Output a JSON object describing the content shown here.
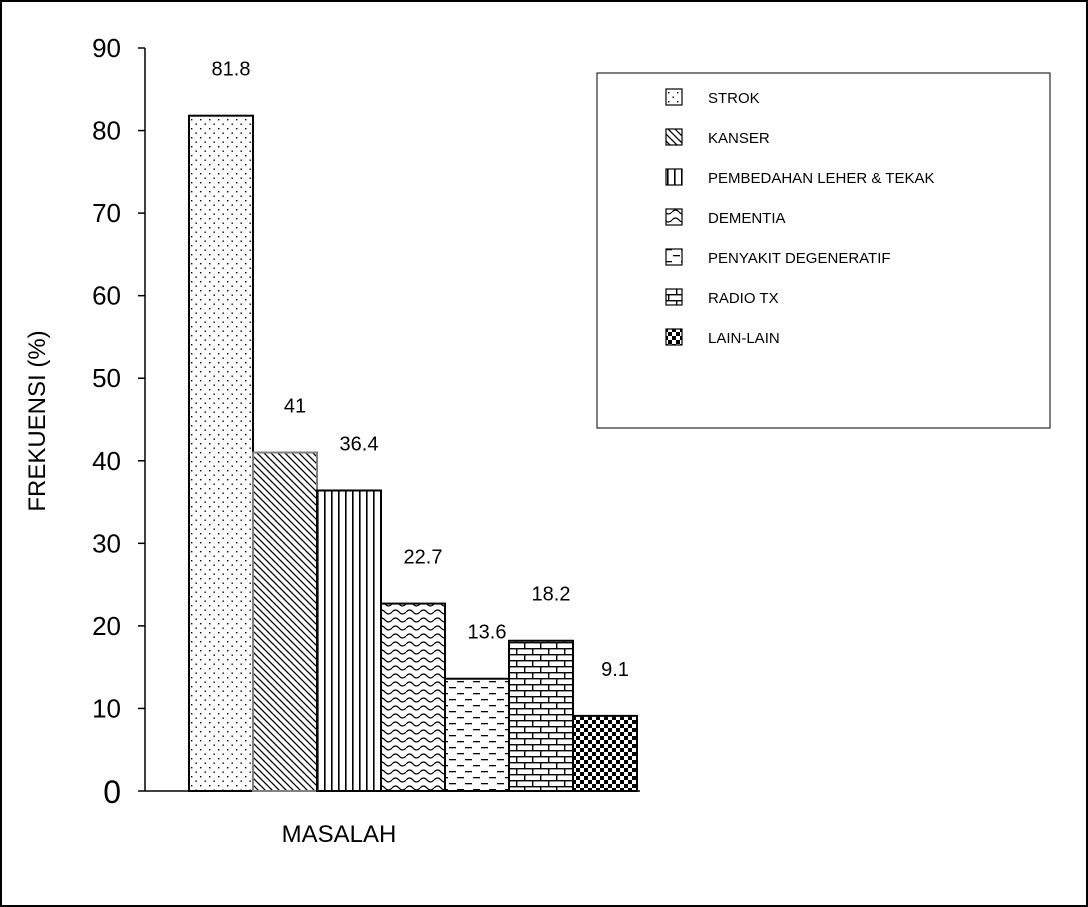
{
  "chart_data": {
    "type": "bar",
    "categories": [
      "STROK",
      "KANSER",
      "PEMBEDAHAN LEHER & TEKAK",
      "DEMENTIA",
      "PENYAKIT DEGENERATIF",
      "RADIO TX",
      "LAIN-LAIN"
    ],
    "values": [
      81.8,
      41,
      36.4,
      22.7,
      13.6,
      18.2,
      9.1
    ],
    "value_labels": [
      "81.8",
      "41",
      "36.4",
      "22.7",
      "13.6",
      "18.2",
      "9.1"
    ],
    "title": "",
    "xlabel": "MASALAH",
    "ylabel": "FREKUENSI (%)",
    "ylim": [
      0,
      90
    ],
    "yticks": [
      0,
      10,
      20,
      30,
      40,
      50,
      60,
      70,
      80,
      90
    ],
    "ytick_labels": [
      "0",
      "10",
      "20",
      "30",
      "40",
      "50",
      "60",
      "70",
      "80",
      "90"
    ],
    "grid": false,
    "legend_position": "top-right",
    "legend": [
      "STROK",
      "KANSER",
      "PEMBEDAHAN LEHER & TEKAK",
      "DEMENTIA",
      "PENYAKIT DEGENERATIF",
      "RADIO TX",
      "LAIN-LAIN"
    ],
    "patterns": [
      "dots",
      "diagonal-lines",
      "vertical-lines",
      "waves",
      "dashed-horizontal",
      "bricks",
      "checker"
    ],
    "colors": {
      "ink": "#000000",
      "background": "#ffffff",
      "kanser_outline": "#808080"
    }
  }
}
